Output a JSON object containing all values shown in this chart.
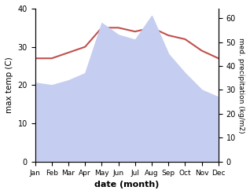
{
  "months": [
    "Jan",
    "Feb",
    "Mar",
    "Apr",
    "May",
    "Jun",
    "Jul",
    "Aug",
    "Sep",
    "Oct",
    "Nov",
    "Dec"
  ],
  "month_indices": [
    0,
    1,
    2,
    3,
    4,
    5,
    6,
    7,
    8,
    9,
    10,
    11
  ],
  "temperature": [
    27,
    27,
    28.5,
    30,
    35,
    35,
    34,
    35,
    33,
    32,
    29,
    27
  ],
  "precipitation": [
    33,
    32,
    34,
    37,
    58,
    53,
    51,
    61,
    45,
    37,
    30,
    27
  ],
  "temp_color": "#c0504d",
  "precip_fill_color": "#c5cef0",
  "temp_ylim": [
    0,
    40
  ],
  "precip_ylim": [
    0,
    64
  ],
  "temp_yticks": [
    0,
    10,
    20,
    30,
    40
  ],
  "precip_yticks": [
    0,
    10,
    20,
    30,
    40,
    50,
    60
  ],
  "xlabel": "date (month)",
  "ylabel_left": "max temp (C)",
  "ylabel_right": "med. precipitation (kg/m2)",
  "background_color": "#ffffff"
}
